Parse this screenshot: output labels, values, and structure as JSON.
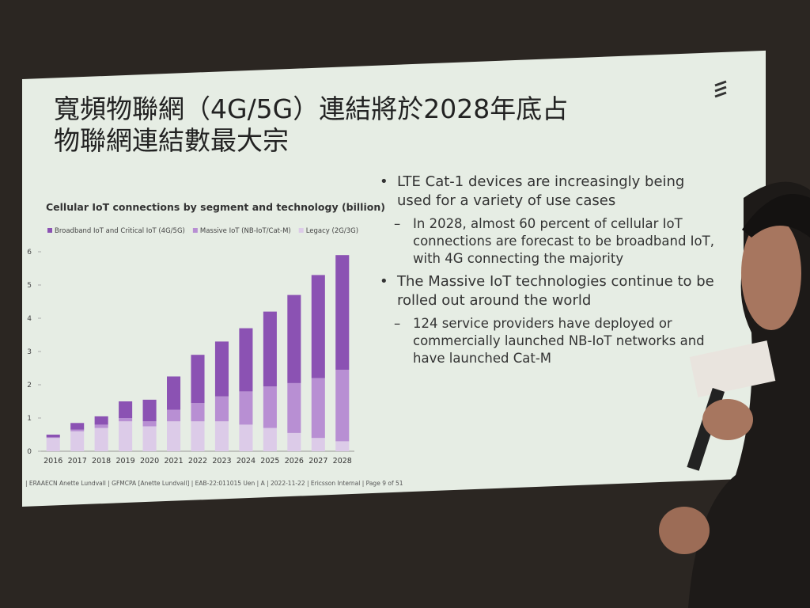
{
  "slide": {
    "title_lines": [
      "寬頻物聯網（4G/5G）連結將於2028年底占",
      "物聯網連結數最大宗"
    ],
    "bullets": [
      {
        "text": "LTE Cat-1 devices are increasingly being used for a variety of use cases",
        "sub": [
          "In 2028, almost 60 percent of cellular IoT connections are forecast to be broadband IoT, with 4G connecting the majority"
        ]
      },
      {
        "text": "The Massive IoT technologies continue to be rolled out around the world",
        "sub": [
          "124 service providers have deployed or commercially launched NB-IoT networks and have launched Cat-M"
        ]
      }
    ],
    "footer": "| ERAAECN Anette Lundvall | GFMCPA [Anette Lundvall] | EAB-22:011015 Uen | A | 2022-11-22 | Ericsson Internal | Page 9 of 51"
  },
  "chart_data": {
    "type": "stacked-bar",
    "title": "Cellular IoT connections by segment and technology (billion)",
    "categories": [
      "2016",
      "2017",
      "2018",
      "2019",
      "2020",
      "2021",
      "2022",
      "2023",
      "2024",
      "2025",
      "2026",
      "2027",
      "2028"
    ],
    "series": [
      {
        "name": "Broadband IoT and Critical IoT (4G/5G)",
        "color": "#8b52b3",
        "values": [
          0.08,
          0.2,
          0.25,
          0.5,
          0.65,
          1.0,
          1.45,
          1.65,
          1.9,
          2.25,
          2.65,
          3.1,
          3.45
        ]
      },
      {
        "name": "Massive IoT (NB-IoT/Cat-M)",
        "color": "#b88fd3",
        "values": [
          0.02,
          0.05,
          0.1,
          0.1,
          0.15,
          0.35,
          0.55,
          0.75,
          1.0,
          1.25,
          1.5,
          1.8,
          2.15
        ]
      },
      {
        "name": "Legacy (2G/3G)",
        "color": "#dccbe8",
        "values": [
          0.4,
          0.6,
          0.7,
          0.9,
          0.75,
          0.9,
          0.9,
          0.9,
          0.8,
          0.7,
          0.55,
          0.4,
          0.3
        ]
      }
    ],
    "ylim": [
      0,
      6
    ],
    "yticks": [
      0,
      1,
      2,
      3,
      4,
      5,
      6
    ]
  }
}
